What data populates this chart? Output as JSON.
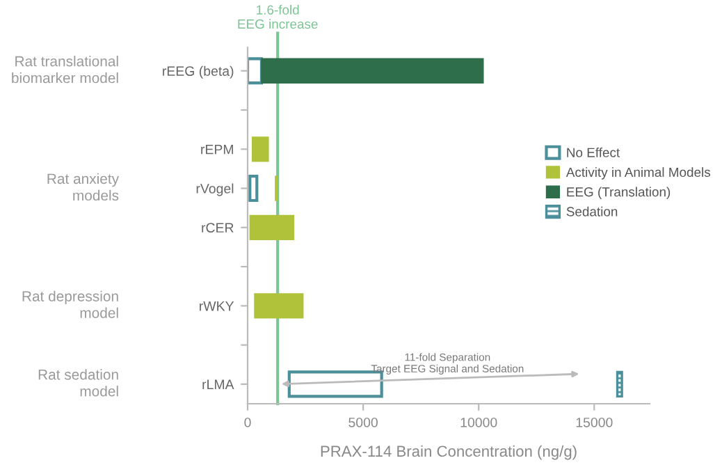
{
  "chart_data": {
    "type": "bar",
    "orientation": "horizontal",
    "xlabel": "PRAX-114 Brain Concentration (ng/g)",
    "categories": [
      "rEEG (beta)",
      null,
      "rEPM",
      "rVogel",
      "rCER",
      null,
      "rWKY",
      null,
      "rLMA"
    ],
    "series": [
      {
        "name": "No Effect",
        "color": "#4a8f9a",
        "base": [
          0,
          null,
          null,
          100,
          null,
          null,
          null,
          null,
          1800
        ],
        "values": [
          600,
          null,
          null,
          300,
          null,
          null,
          null,
          null,
          4000
        ]
      },
      {
        "name": "Activity in Animal Models",
        "color": "#b0c23a",
        "base": [
          null,
          null,
          200,
          1200,
          100,
          null,
          300,
          null,
          null
        ],
        "values": [
          null,
          null,
          700,
          100,
          1900,
          null,
          2100,
          null,
          null
        ]
      },
      {
        "name": "EEG (Translation)",
        "color": "#2e6e4a",
        "base": [
          600,
          null,
          null,
          null,
          null,
          null,
          null,
          null,
          null
        ],
        "values": [
          9600,
          null,
          null,
          null,
          null,
          null,
          null,
          null,
          null
        ]
      },
      {
        "name": "Sedation",
        "color": "#4a8f9a",
        "base": [
          null,
          null,
          null,
          null,
          null,
          null,
          null,
          null,
          16000
        ],
        "values": [
          null,
          null,
          null,
          null,
          null,
          null,
          null,
          null,
          200
        ]
      }
    ],
    "xlim": [
      0,
      17400
    ],
    "xticks": [
      0,
      5000,
      10000,
      15000
    ],
    "ref_lines": [
      {
        "axis": "x",
        "value": 1300,
        "label": "1.6-fold\nEEG increase",
        "color": "#7cc494"
      }
    ],
    "annotations": [
      "11-fold Separation\nTarget EEG Signal and Sedation",
      "Rat translational\nbiomarker model",
      "Rat anxiety\nmodels",
      "Rat depression\nmodel",
      "Rat sedation\nmodel"
    ],
    "legend": "right",
    "grid": false
  }
}
